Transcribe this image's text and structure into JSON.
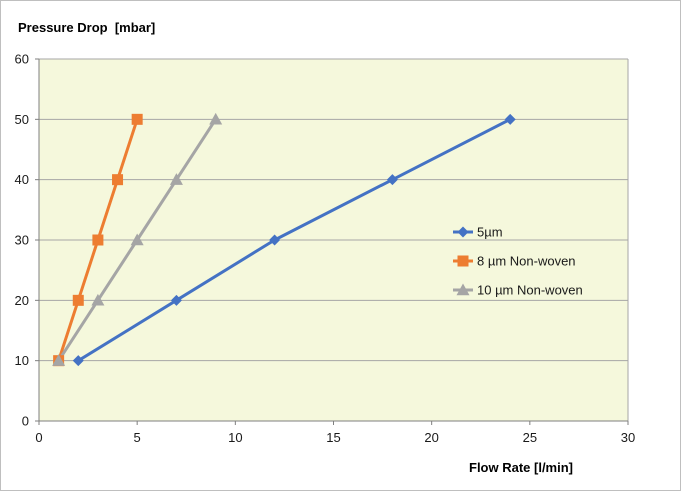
{
  "chart_data": {
    "type": "line",
    "ylabel": "Pressure Drop  [mbar]",
    "xlabel": "Flow Rate [l/min]",
    "xlim": [
      0,
      30
    ],
    "ylim": [
      0,
      60
    ],
    "x_ticks": [
      0,
      5,
      10,
      15,
      20,
      25,
      30
    ],
    "y_ticks": [
      0,
      10,
      20,
      30,
      40,
      50,
      60
    ],
    "grid": "horizontal",
    "plot_background": "#f5f8dc",
    "legend_position": "right",
    "series": [
      {
        "name": "5µm",
        "color": "#4472c4",
        "marker": "diamond",
        "x": [
          2,
          7,
          12,
          18,
          24
        ],
        "y": [
          10,
          20,
          30,
          40,
          50
        ]
      },
      {
        "name": "8 µm Non-woven",
        "color": "#ed7d31",
        "marker": "square",
        "x": [
          1,
          2,
          3,
          4,
          5
        ],
        "y": [
          10,
          20,
          30,
          40,
          50
        ]
      },
      {
        "name": "10 µm Non-woven",
        "color": "#a5a5a5",
        "marker": "triangle",
        "x": [
          1,
          3,
          5,
          7,
          9
        ],
        "y": [
          10,
          20,
          30,
          40,
          50
        ]
      }
    ]
  }
}
